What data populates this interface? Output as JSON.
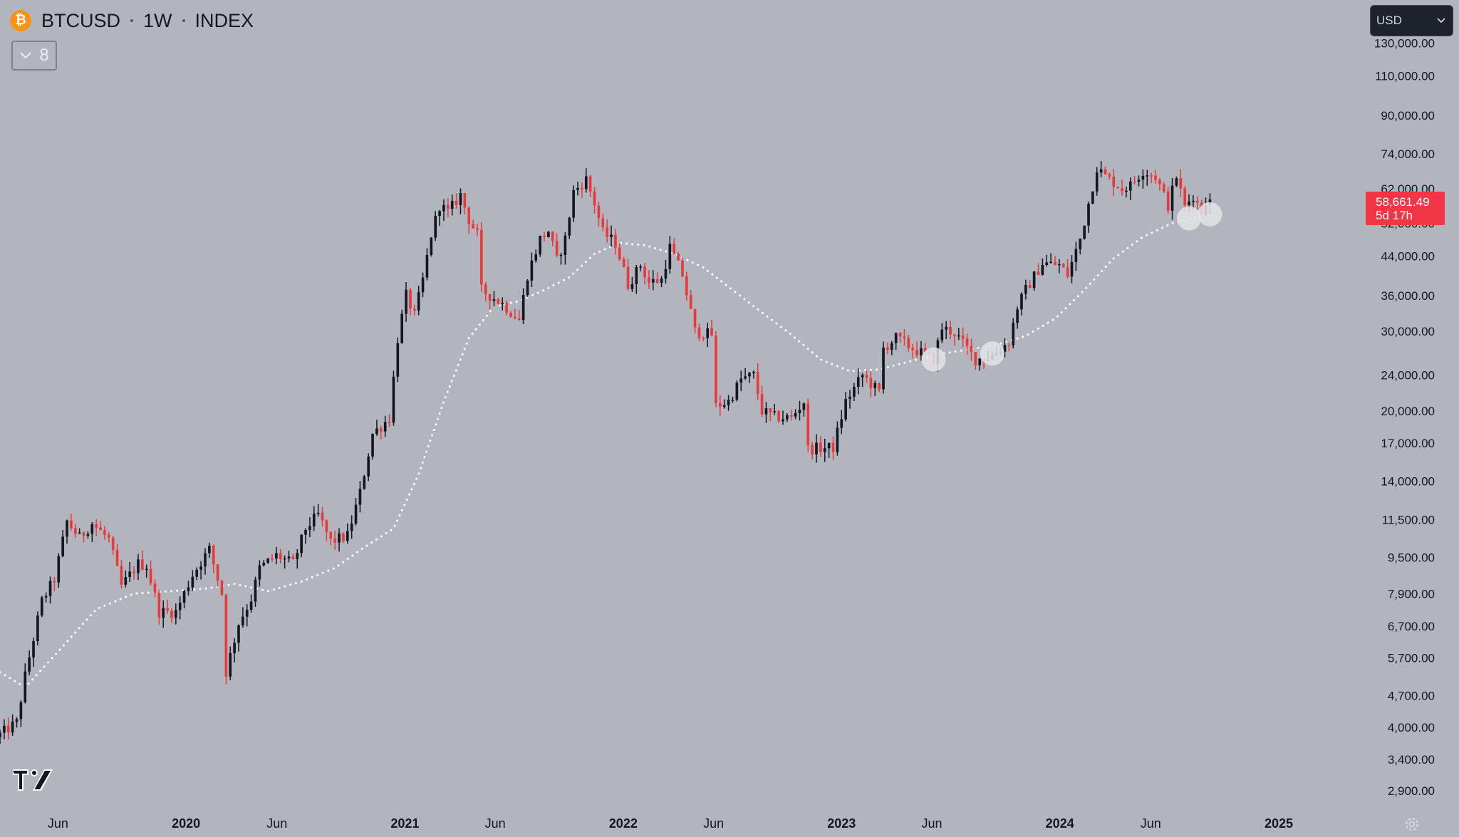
{
  "header": {
    "coin_glyph": "₿",
    "symbol": "BTCUSD",
    "interval": "1W",
    "exchange": "INDEX"
  },
  "collapse_button": {
    "count": "8"
  },
  "currency_selector": {
    "label": "USD"
  },
  "price_label": {
    "price": "58,661.49",
    "countdown": "5d 17h",
    "color": "#f23645"
  },
  "colors": {
    "background": "#b2b5be",
    "up": "#131722",
    "down": "#e83a3a",
    "moving_average": "#ffffff",
    "axis_text": "#131722"
  },
  "icons": [
    "bitcoin-icon",
    "chevron-down-icon",
    "tradingview-logo-icon",
    "gear-icon"
  ],
  "chart_data": {
    "type": "candlestick",
    "interval": "1W",
    "y_scale": "log",
    "y_ticks": [
      "130,000.00",
      "110,000.00",
      "90,000.00",
      "74,000.00",
      "62,000.00",
      "52,000.00",
      "44,000.00",
      "36,000.00",
      "30,000.00",
      "24,000.00",
      "20,000.00",
      "17,000.00",
      "14,000.00",
      "11,500.00",
      "9,500.00",
      "7,900.00",
      "6,700.00",
      "5,700.00",
      "4,700.00",
      "4,000.00",
      "3,400.00",
      "2,900.00"
    ],
    "x_ticks": [
      {
        "label": "Jun",
        "date": "2019-06-01",
        "bold": false
      },
      {
        "label": "2020",
        "date": "2020-01-01",
        "bold": true
      },
      {
        "label": "Jun",
        "date": "2020-06-01",
        "bold": false
      },
      {
        "label": "2021",
        "date": "2021-01-01",
        "bold": true
      },
      {
        "label": "Jun",
        "date": "2021-06-01",
        "bold": false
      },
      {
        "label": "2022",
        "date": "2022-01-01",
        "bold": true
      },
      {
        "label": "Jun",
        "date": "2022-06-01",
        "bold": false
      },
      {
        "label": "2023",
        "date": "2023-01-01",
        "bold": true
      },
      {
        "label": "Jun",
        "date": "2023-06-01",
        "bold": false
      },
      {
        "label": "2024",
        "date": "2024-01-01",
        "bold": true
      },
      {
        "label": "Jun",
        "date": "2024-06-01",
        "bold": false
      },
      {
        "label": "2025",
        "date": "2025-01-01",
        "bold": true
      }
    ],
    "x_range": [
      "2019-02-24",
      "2025-05-18"
    ],
    "y_range": [
      2600,
      140000
    ],
    "last_price": 58661.49,
    "price_path": [
      [
        "2019-02-24",
        3800
      ],
      [
        "2019-03-31",
        4100
      ],
      [
        "2019-04-14",
        5200
      ],
      [
        "2019-05-12",
        7600
      ],
      [
        "2019-06-02",
        8500
      ],
      [
        "2019-06-23",
        11400
      ],
      [
        "2019-07-14",
        10500
      ],
      [
        "2019-08-04",
        11300
      ],
      [
        "2019-09-01",
        10400
      ],
      [
        "2019-09-22",
        8200
      ],
      [
        "2019-10-20",
        9200
      ],
      [
        "2019-11-03",
        9100
      ],
      [
        "2019-11-24",
        7200
      ],
      [
        "2019-12-22",
        7200
      ],
      [
        "2020-01-19",
        8700
      ],
      [
        "2020-02-16",
        9900
      ],
      [
        "2020-03-08",
        7900
      ],
      [
        "2020-03-15",
        5300
      ],
      [
        "2020-04-05",
        6800
      ],
      [
        "2020-04-26",
        7700
      ],
      [
        "2020-05-10",
        9000
      ],
      [
        "2020-06-07",
        9600
      ],
      [
        "2020-07-05",
        9200
      ],
      [
        "2020-07-26",
        11000
      ],
      [
        "2020-08-16",
        11800
      ],
      [
        "2020-09-06",
        10300
      ],
      [
        "2020-10-04",
        10600
      ],
      [
        "2020-10-25",
        13200
      ],
      [
        "2020-11-15",
        17800
      ],
      [
        "2020-12-13",
        19300
      ],
      [
        "2020-12-27",
        28900
      ],
      [
        "2021-01-10",
        36000
      ],
      [
        "2021-01-24",
        32500
      ],
      [
        "2021-02-07",
        39000
      ],
      [
        "2021-02-21",
        49000
      ],
      [
        "2021-03-07",
        57000
      ],
      [
        "2021-03-21",
        55000
      ],
      [
        "2021-04-11",
        60000
      ],
      [
        "2021-04-25",
        53000
      ],
      [
        "2021-05-09",
        49000
      ],
      [
        "2021-05-16",
        37000
      ],
      [
        "2021-06-06",
        35500
      ],
      [
        "2021-06-20",
        34500
      ],
      [
        "2021-07-18",
        31800
      ],
      [
        "2021-08-01",
        40000
      ],
      [
        "2021-08-22",
        48000
      ],
      [
        "2021-09-05",
        50000
      ],
      [
        "2021-09-19",
        43000
      ],
      [
        "2021-10-03",
        48000
      ],
      [
        "2021-10-17",
        61000
      ],
      [
        "2021-11-07",
        65000
      ],
      [
        "2021-11-21",
        57500
      ],
      [
        "2021-12-05",
        49500
      ],
      [
        "2021-12-26",
        47000
      ],
      [
        "2022-01-16",
        38000
      ],
      [
        "2022-02-06",
        42000
      ],
      [
        "2022-02-20",
        38500
      ],
      [
        "2022-03-13",
        39000
      ],
      [
        "2022-03-27",
        46000
      ],
      [
        "2022-04-17",
        40000
      ],
      [
        "2022-05-08",
        30000
      ],
      [
        "2022-06-05",
        29500
      ],
      [
        "2022-06-12",
        20500
      ],
      [
        "2022-07-03",
        21000
      ],
      [
        "2022-07-24",
        23500
      ],
      [
        "2022-08-14",
        24000
      ],
      [
        "2022-08-28",
        20000
      ],
      [
        "2022-09-18",
        19400
      ],
      [
        "2022-10-16",
        19300
      ],
      [
        "2022-11-06",
        21000
      ],
      [
        "2022-11-13",
        16500
      ],
      [
        "2022-12-25",
        16600
      ],
      [
        "2023-01-15",
        21000
      ],
      [
        "2023-02-12",
        24000
      ],
      [
        "2023-03-12",
        22000
      ],
      [
        "2023-03-19",
        27500
      ],
      [
        "2023-04-09",
        29000
      ],
      [
        "2023-05-07",
        27500
      ],
      [
        "2023-06-11",
        26000
      ],
      [
        "2023-06-25",
        30500
      ],
      [
        "2023-07-16",
        29800
      ],
      [
        "2023-08-20",
        26000
      ],
      [
        "2023-09-17",
        26500
      ],
      [
        "2023-10-15",
        28500
      ],
      [
        "2023-10-29",
        34000
      ],
      [
        "2023-11-12",
        37000
      ],
      [
        "2023-12-10",
        42500
      ],
      [
        "2024-01-07",
        42000
      ],
      [
        "2024-01-21",
        40000
      ],
      [
        "2024-02-11",
        48000
      ],
      [
        "2024-03-03",
        63000
      ],
      [
        "2024-03-10",
        69000
      ],
      [
        "2024-03-24",
        66000
      ],
      [
        "2024-04-21",
        62000
      ],
      [
        "2024-05-05",
        63000
      ],
      [
        "2024-05-26",
        68000
      ],
      [
        "2024-06-16",
        66000
      ],
      [
        "2024-07-07",
        57000
      ],
      [
        "2024-07-21",
        66000
      ],
      [
        "2024-08-04",
        56500
      ],
      [
        "2024-08-18",
        60000
      ],
      [
        "2024-09-01",
        55000
      ],
      [
        "2024-09-08",
        58661
      ]
    ],
    "moving_average_path": [
      [
        "2019-02-24",
        5300
      ],
      [
        "2019-04-07",
        4900
      ],
      [
        "2019-06-02",
        5900
      ],
      [
        "2019-08-04",
        7300
      ],
      [
        "2019-10-06",
        7900
      ],
      [
        "2019-12-08",
        8000
      ],
      [
        "2020-02-02",
        8100
      ],
      [
        "2020-03-22",
        8300
      ],
      [
        "2020-05-17",
        8000
      ],
      [
        "2020-07-12",
        8400
      ],
      [
        "2020-09-06",
        9000
      ],
      [
        "2020-10-25",
        10000
      ],
      [
        "2020-12-13",
        11000
      ],
      [
        "2021-01-24",
        14500
      ],
      [
        "2021-03-07",
        21000
      ],
      [
        "2021-04-18",
        29000
      ],
      [
        "2021-05-30",
        34000
      ],
      [
        "2021-07-11",
        35000
      ],
      [
        "2021-08-22",
        37000
      ],
      [
        "2021-10-03",
        39500
      ],
      [
        "2021-11-14",
        44500
      ],
      [
        "2021-12-26",
        47000
      ],
      [
        "2022-02-06",
        46500
      ],
      [
        "2022-03-27",
        44500
      ],
      [
        "2022-05-15",
        41500
      ],
      [
        "2022-07-03",
        37000
      ],
      [
        "2022-08-21",
        33000
      ],
      [
        "2022-10-09",
        29500
      ],
      [
        "2022-11-27",
        26000
      ],
      [
        "2023-01-15",
        24500
      ],
      [
        "2023-03-05",
        24700
      ],
      [
        "2023-04-23",
        25700
      ],
      [
        "2023-06-11",
        26700
      ],
      [
        "2023-07-30",
        27300
      ],
      [
        "2023-09-17",
        28000
      ],
      [
        "2023-11-05",
        29300
      ],
      [
        "2023-12-24",
        32000
      ],
      [
        "2024-02-11",
        37000
      ],
      [
        "2024-03-31",
        43500
      ],
      [
        "2024-05-19",
        48500
      ],
      [
        "2024-07-07",
        52000
      ],
      [
        "2024-08-25",
        54000
      ],
      [
        "2024-09-08",
        54600
      ]
    ],
    "highlight_points": [
      {
        "date": "2023-06-04",
        "price": 26000
      },
      {
        "date": "2023-09-10",
        "price": 26800
      },
      {
        "date": "2024-08-04",
        "price": 53300
      },
      {
        "date": "2024-09-08",
        "price": 54400
      }
    ]
  }
}
